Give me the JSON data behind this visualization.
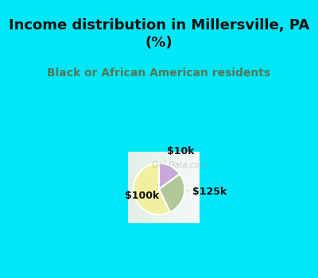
{
  "title": "Income distribution in Millersville, PA\n(%)",
  "subtitle": "Black or African American residents",
  "slices": [
    {
      "label": "$10k",
      "value": 15,
      "color": "#c8a8d8"
    },
    {
      "label": "$125k",
      "value": 28,
      "color": "#b0c898"
    },
    {
      "label": "$100k",
      "value": 57,
      "color": "#f0f0a0"
    }
  ],
  "title_color": "#111111",
  "subtitle_color": "#557755",
  "bg_color": "#00e8f8",
  "chart_bg_top": "#e8f0ec",
  "chart_bg_bottom": "#d8eee8",
  "title_fontsize": 13,
  "subtitle_fontsize": 10,
  "label_fontsize": 9,
  "start_angle": 90,
  "watermark": "City-Data.com",
  "label_line_color": "#c8d8b0"
}
